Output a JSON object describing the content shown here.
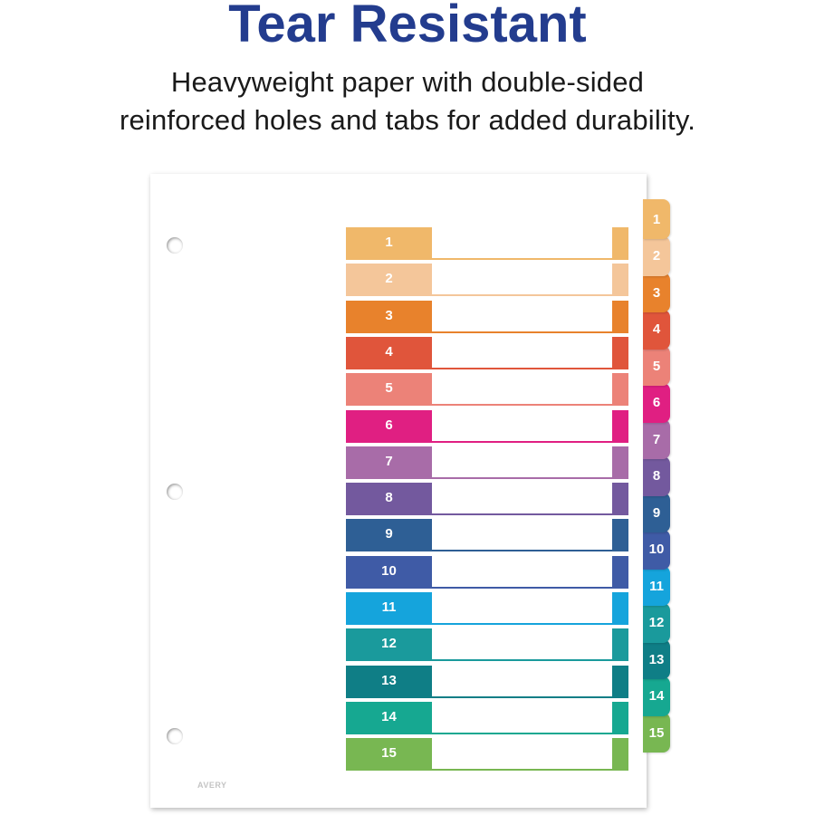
{
  "headline": "Tear Resistant",
  "subline_1": "Heavyweight paper with double-sided",
  "subline_2": "reinforced holes and tabs for added durability.",
  "brand_mark": "AVERY",
  "colors": {
    "headline": "#233c8e"
  },
  "tabs": [
    {
      "label": "1",
      "color": "#f0b86a"
    },
    {
      "label": "2",
      "color": "#f4c69a"
    },
    {
      "label": "3",
      "color": "#e8822c"
    },
    {
      "label": "4",
      "color": "#e0553b"
    },
    {
      "label": "5",
      "color": "#ec8278"
    },
    {
      "label": "6",
      "color": "#e01f82"
    },
    {
      "label": "7",
      "color": "#a86ca8"
    },
    {
      "label": "8",
      "color": "#73599e"
    },
    {
      "label": "9",
      "color": "#2e5f95"
    },
    {
      "label": "10",
      "color": "#3f5ba6"
    },
    {
      "label": "11",
      "color": "#15a4dc"
    },
    {
      "label": "12",
      "color": "#1a9a9c"
    },
    {
      "label": "13",
      "color": "#0f7e86"
    },
    {
      "label": "14",
      "color": "#16a891"
    },
    {
      "label": "15",
      "color": "#78b752"
    }
  ]
}
